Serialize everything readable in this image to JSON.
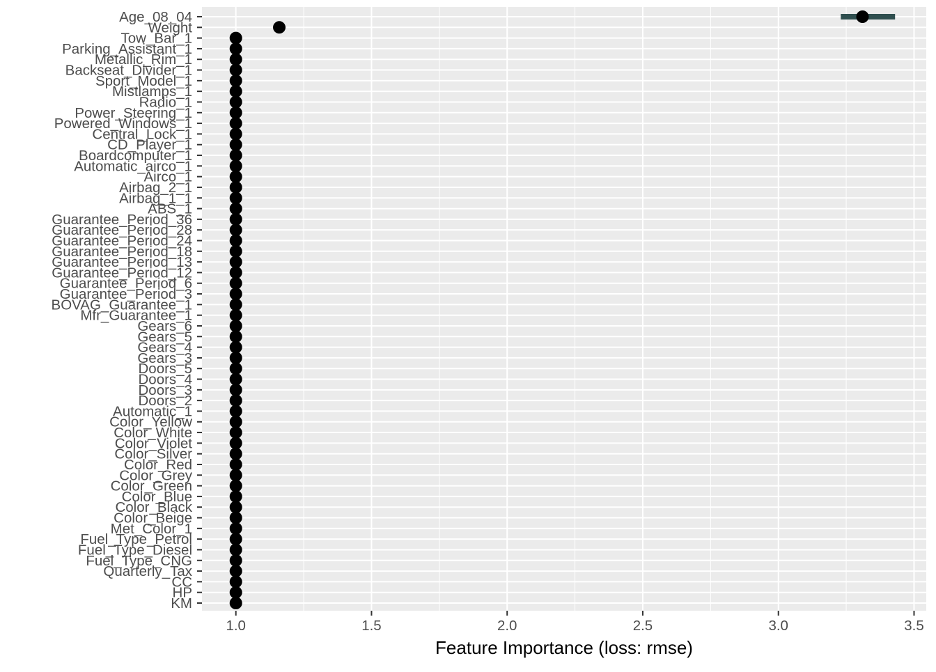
{
  "chart_data": {
    "type": "scatter",
    "title": "",
    "xlabel": "Feature Importance (loss: rmse)",
    "ylabel": "",
    "xlim": [
      0.875,
      3.545
    ],
    "xticks": [
      "1.0",
      "1.5",
      "2.0",
      "2.5",
      "3.0",
      "3.5"
    ],
    "xtick_values": [
      1.0,
      1.5,
      2.0,
      2.5,
      3.0,
      3.5
    ],
    "grid": true,
    "colors": {
      "panel_background": "#EBEBEB",
      "grid": "#FFFFFF",
      "point": "#000000",
      "interval": "#2F4F4F",
      "tick_label": "#4D4D4D",
      "axis_title": "#000000"
    },
    "features": [
      {
        "label": "Age_08_04",
        "value": 3.31,
        "low": 3.23,
        "high": 3.43
      },
      {
        "label": "Weight",
        "value": 1.16
      },
      {
        "label": "Tow_Bar_1",
        "value": 1.0
      },
      {
        "label": "Parking_Assistant_1",
        "value": 1.0
      },
      {
        "label": "Metallic_Rim_1",
        "value": 1.0
      },
      {
        "label": "Backseat_Divider_1",
        "value": 1.0
      },
      {
        "label": "Sport_Model_1",
        "value": 1.0
      },
      {
        "label": "Mistlamps_1",
        "value": 1.0
      },
      {
        "label": "Radio_1",
        "value": 1.0
      },
      {
        "label": "Power_Steering_1",
        "value": 1.0
      },
      {
        "label": "Powered_Windows_1",
        "value": 1.0
      },
      {
        "label": "Central_Lock_1",
        "value": 1.0
      },
      {
        "label": "CD_Player_1",
        "value": 1.0
      },
      {
        "label": "Boardcomputer_1",
        "value": 1.0
      },
      {
        "label": "Automatic_airco_1",
        "value": 1.0
      },
      {
        "label": "Airco_1",
        "value": 1.0
      },
      {
        "label": "Airbag_2_1",
        "value": 1.0
      },
      {
        "label": "Airbag_1_1",
        "value": 1.0
      },
      {
        "label": "ABS_1",
        "value": 1.0
      },
      {
        "label": "Guarantee_Period_36",
        "value": 1.0
      },
      {
        "label": "Guarantee_Period_28",
        "value": 1.0
      },
      {
        "label": "Guarantee_Period_24",
        "value": 1.0
      },
      {
        "label": "Guarantee_Period_18",
        "value": 1.0
      },
      {
        "label": "Guarantee_Period_13",
        "value": 1.0
      },
      {
        "label": "Guarantee_Period_12",
        "value": 1.0
      },
      {
        "label": "Guarantee_Period_6",
        "value": 1.0
      },
      {
        "label": "Guarantee_Period_3",
        "value": 1.0
      },
      {
        "label": "BOVAG_Guarantee_1",
        "value": 1.0
      },
      {
        "label": "Mfr_Guarantee_1",
        "value": 1.0
      },
      {
        "label": "Gears_6",
        "value": 1.0
      },
      {
        "label": "Gears_5",
        "value": 1.0
      },
      {
        "label": "Gears_4",
        "value": 1.0
      },
      {
        "label": "Gears_3",
        "value": 1.0
      },
      {
        "label": "Doors_5",
        "value": 1.0
      },
      {
        "label": "Doors_4",
        "value": 1.0
      },
      {
        "label": "Doors_3",
        "value": 1.0
      },
      {
        "label": "Doors_2",
        "value": 1.0
      },
      {
        "label": "Automatic_1",
        "value": 1.0
      },
      {
        "label": "Color_Yellow",
        "value": 1.0
      },
      {
        "label": "Color_White",
        "value": 1.0
      },
      {
        "label": "Color_Violet",
        "value": 1.0
      },
      {
        "label": "Color_Silver",
        "value": 1.0
      },
      {
        "label": "Color_Red",
        "value": 1.0
      },
      {
        "label": "Color_Grey",
        "value": 1.0
      },
      {
        "label": "Color_Green",
        "value": 1.0
      },
      {
        "label": "Color_Blue",
        "value": 1.0
      },
      {
        "label": "Color_Black",
        "value": 1.0
      },
      {
        "label": "Color_Beige",
        "value": 1.0
      },
      {
        "label": "Met_Color_1",
        "value": 1.0
      },
      {
        "label": "Fuel_Type_Petrol",
        "value": 1.0
      },
      {
        "label": "Fuel_Type_Diesel",
        "value": 1.0
      },
      {
        "label": "Fuel_Type_CNG",
        "value": 1.0
      },
      {
        "label": "Quarterly_Tax",
        "value": 1.0
      },
      {
        "label": "CC",
        "value": 1.0
      },
      {
        "label": "HP",
        "value": 1.0
      },
      {
        "label": "KM",
        "value": 1.0
      }
    ]
  }
}
